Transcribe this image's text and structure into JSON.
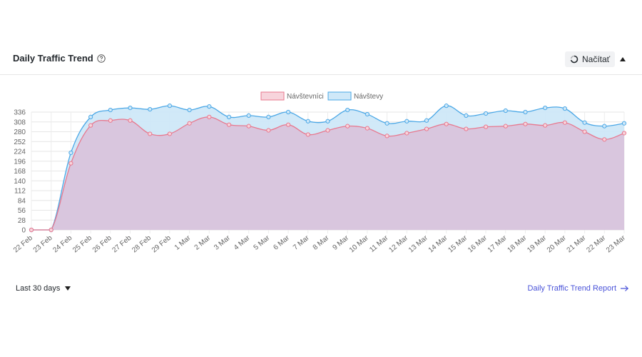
{
  "widget": {
    "title": "Daily Traffic Trend",
    "load_button_label": "Načítať",
    "range_label": "Last 30 days",
    "report_link_label": "Daily Traffic Trend Report"
  },
  "icons": {
    "help": "help-circle-icon",
    "load": "refresh-icon",
    "collapse": "triangle-up-icon",
    "range_caret": "caret-down-icon",
    "report_arrow": "arrow-right-icon"
  },
  "colors": {
    "visitors_stroke": "#e8788e",
    "visitors_fill": "#f7d4dc",
    "visits_stroke": "#4aa7e6",
    "visits_fill": "#cfe8f8",
    "overlap_fill": "#d9c6de",
    "link": "#4a53d9"
  },
  "chart_data": {
    "type": "area",
    "x": [
      "22 Feb",
      "23 Feb",
      "24 Feb",
      "25 Feb",
      "26 Feb",
      "27 Feb",
      "28 Feb",
      "29 Feb",
      "1 Mar",
      "2 Mar",
      "3 Mar",
      "4 Mar",
      "5 Mar",
      "6 Mar",
      "7 Mar",
      "8 Mar",
      "9 Mar",
      "10 Mar",
      "11 Mar",
      "12 Mar",
      "13 Mar",
      "14 Mar",
      "15 Mar",
      "16 Mar",
      "17 Mar",
      "18 Mar",
      "19 Mar",
      "20 Mar",
      "21 Mar",
      "22 Mar",
      "23 Mar"
    ],
    "series": [
      {
        "name": "Návštevníci",
        "values": [
          0,
          0,
          190,
          298,
          312,
          312,
          274,
          274,
          304,
          322,
          300,
          296,
          284,
          300,
          272,
          284,
          296,
          290,
          268,
          276,
          288,
          302,
          288,
          294,
          296,
          302,
          298,
          306,
          280,
          258,
          276
        ]
      },
      {
        "name": "Návštevy",
        "values": [
          0,
          0,
          220,
          322,
          342,
          348,
          344,
          354,
          342,
          352,
          322,
          326,
          322,
          336,
          310,
          310,
          342,
          330,
          304,
          310,
          312,
          354,
          326,
          332,
          340,
          336,
          348,
          346,
          306,
          296,
          304
        ]
      }
    ],
    "yticks": [
      0,
      28,
      56,
      84,
      112,
      140,
      168,
      196,
      224,
      252,
      280,
      308,
      336
    ],
    "ylim": [
      0,
      336
    ],
    "legend": "top-center",
    "grid": true
  }
}
